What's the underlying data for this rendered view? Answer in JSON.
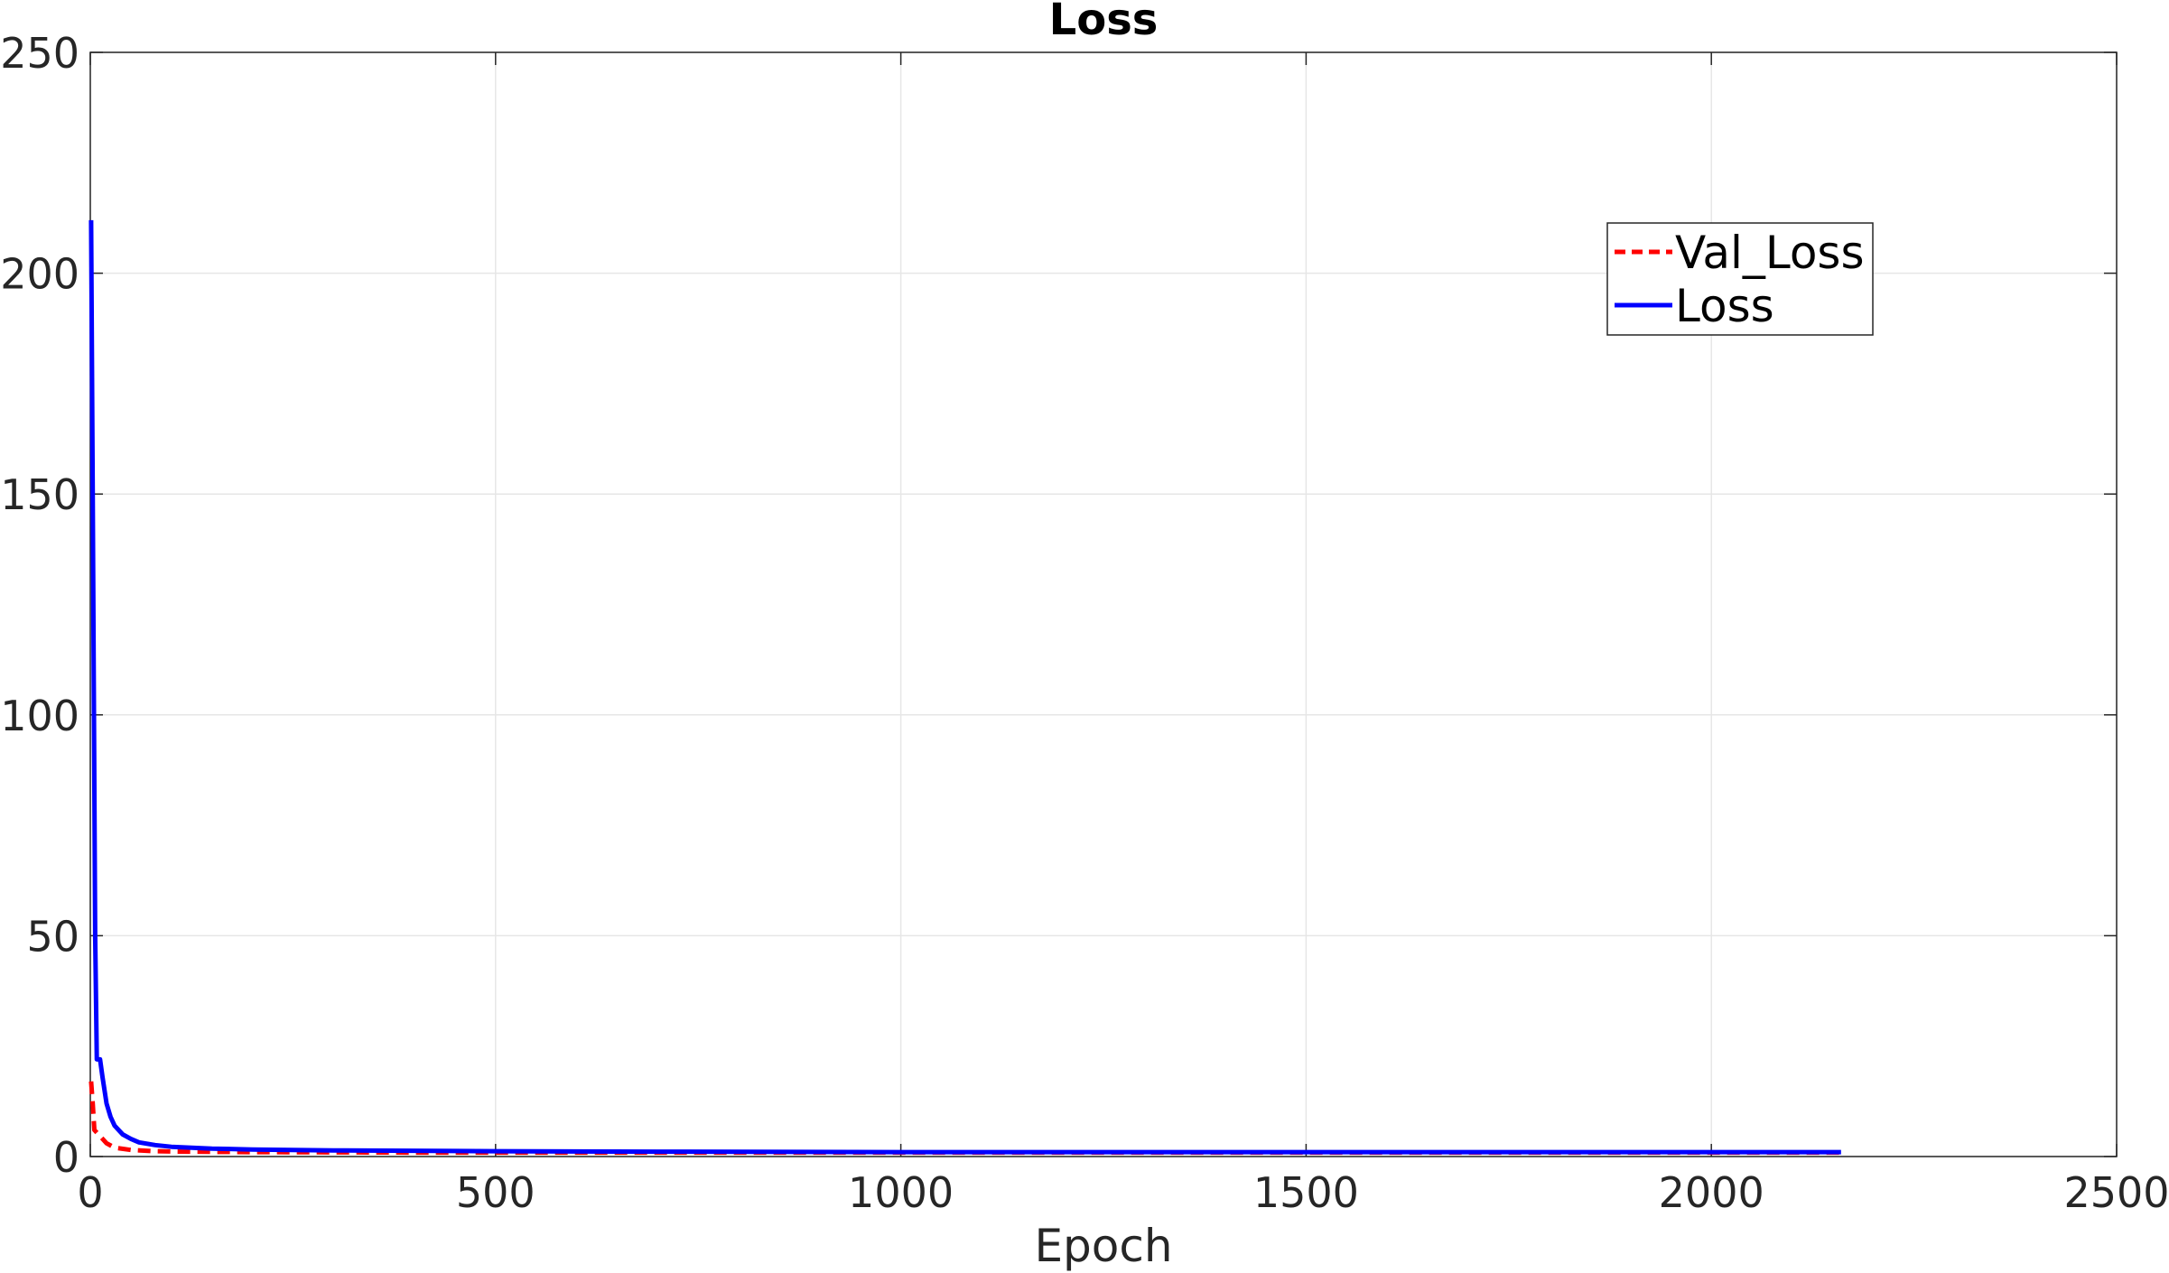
{
  "chart_data": {
    "type": "line",
    "title": "Loss",
    "xlabel": "Epoch",
    "ylabel": "",
    "xlim": [
      0,
      2500
    ],
    "ylim": [
      0,
      250
    ],
    "xticks": [
      0,
      500,
      1000,
      1500,
      2000,
      2500
    ],
    "yticks": [
      0,
      50,
      100,
      150,
      200,
      250
    ],
    "grid": true,
    "legend_position": "top-right",
    "series": [
      {
        "name": "Val_Loss",
        "color": "#ff0000",
        "style": "dashed",
        "x": [
          1,
          3,
          5,
          10,
          20,
          30,
          50,
          80,
          120,
          200,
          400,
          700,
          1000,
          1500,
          2000,
          2160
        ],
        "y": [
          17,
          12,
          6,
          5,
          3,
          2,
          1.5,
          1.2,
          1.1,
          1.0,
          0.9,
          0.9,
          0.9,
          0.9,
          0.9,
          0.9
        ]
      },
      {
        "name": "Loss",
        "color": "#0000ff",
        "style": "solid",
        "x": [
          1,
          3,
          6,
          8,
          10,
          12,
          15,
          20,
          25,
          30,
          40,
          50,
          60,
          80,
          100,
          150,
          200,
          300,
          500,
          700,
          1000,
          1500,
          2000,
          2160
        ],
        "y": [
          212,
          150,
          50,
          22,
          22,
          22,
          18,
          12,
          9,
          7,
          5,
          4,
          3.2,
          2.6,
          2.2,
          1.8,
          1.6,
          1.4,
          1.2,
          1.1,
          1.0,
          1.0,
          1.0,
          1.0
        ]
      }
    ]
  }
}
